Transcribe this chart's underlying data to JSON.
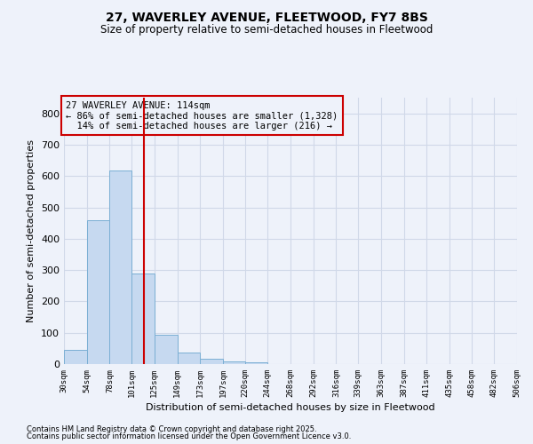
{
  "title1": "27, WAVERLEY AVENUE, FLEETWOOD, FY7 8BS",
  "title2": "Size of property relative to semi-detached houses in Fleetwood",
  "xlabel": "Distribution of semi-detached houses by size in Fleetwood",
  "ylabel": "Number of semi-detached properties",
  "footer1": "Contains HM Land Registry data © Crown copyright and database right 2025.",
  "footer2": "Contains public sector information licensed under the Open Government Licence v3.0.",
  "annotation_line1": "27 WAVERLEY AVENUE: 114sqm",
  "annotation_line2": "← 86% of semi-detached houses are smaller (1,328)",
  "annotation_line3": "  14% of semi-detached houses are larger (216) →",
  "bar_edges": [
    30,
    54,
    78,
    101,
    125,
    149,
    173,
    197,
    220,
    244,
    268,
    292,
    316,
    339,
    363,
    387,
    411,
    435,
    458,
    482,
    506
  ],
  "bar_values": [
    45,
    460,
    617,
    290,
    93,
    36,
    17,
    9,
    5,
    0,
    0,
    0,
    0,
    0,
    0,
    0,
    0,
    0,
    0,
    0
  ],
  "bar_color": "#c6d9f0",
  "bar_edge_color": "#7bafd4",
  "vline_color": "#cc0000",
  "vline_x": 114,
  "ylim": [
    0,
    850
  ],
  "yticks": [
    0,
    100,
    200,
    300,
    400,
    500,
    600,
    700,
    800
  ],
  "grid_color": "#d0d8e8",
  "bg_color": "#eef2fa",
  "annotation_box_color": "#cc0000"
}
